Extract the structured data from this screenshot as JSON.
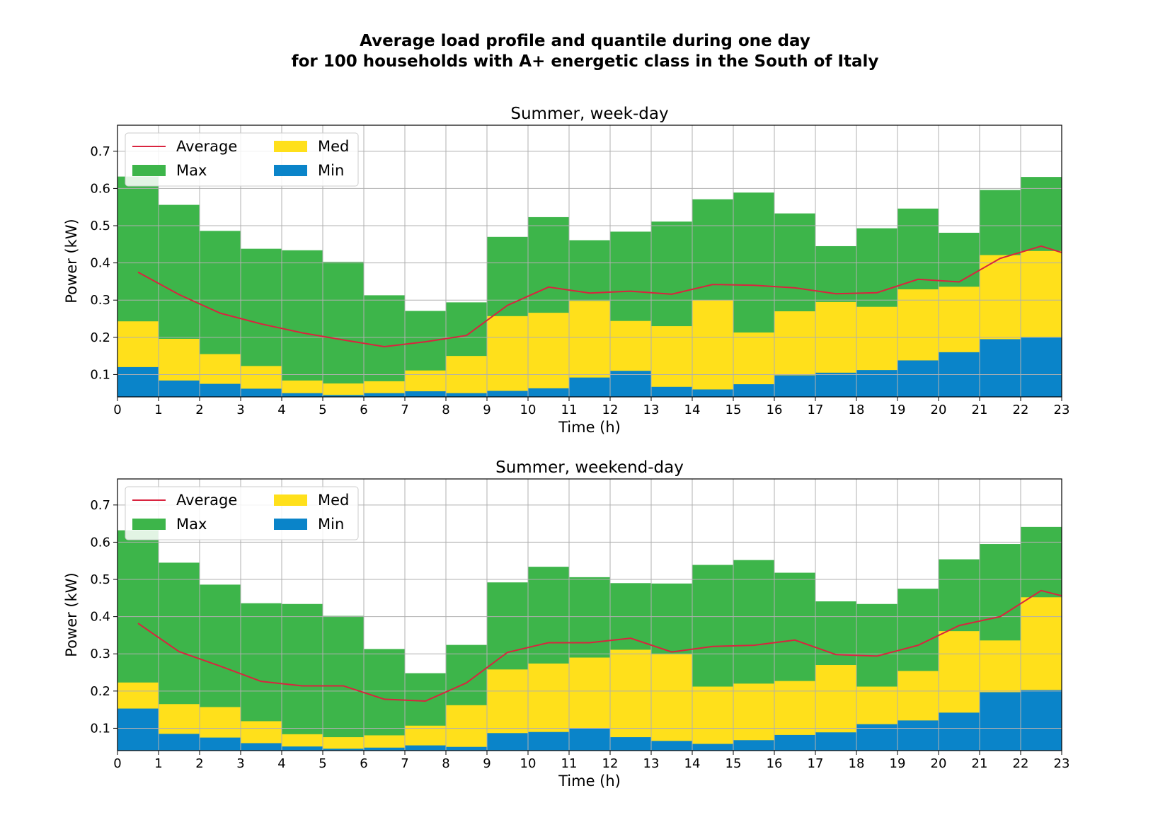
{
  "figure_title": "Average load profile and quantile during one day\nfor 100 households with A+ energetic class in the South of Italy",
  "colors": {
    "max": "#3db54a",
    "med": "#ffe01b",
    "min": "#0a84c9",
    "average": "#d9243f",
    "grid": "#b0b0b0"
  },
  "chart_data": [
    {
      "type": "bar",
      "title": "Summer, week-day",
      "xlabel": "Time (h)",
      "ylabel": "Power (kW)",
      "xlim": [
        0,
        23
      ],
      "ylim": [
        0.04,
        0.77
      ],
      "xticks": [
        "0",
        "1",
        "2",
        "3",
        "4",
        "5",
        "6",
        "7",
        "8",
        "9",
        "10",
        "11",
        "12",
        "13",
        "14",
        "15",
        "16",
        "17",
        "18",
        "19",
        "20",
        "21",
        "22",
        "23"
      ],
      "yticks": [
        "0.1",
        "0.2",
        "0.3",
        "0.4",
        "0.5",
        "0.6",
        "0.7"
      ],
      "grid": true,
      "legend_position": "top-left",
      "legend": [
        "Average",
        "Max",
        "Med",
        "Min"
      ],
      "series": [
        {
          "name": "Max",
          "values": [
            0.632,
            0.556,
            0.486,
            0.438,
            0.434,
            0.403,
            0.313,
            0.271,
            0.294,
            0.47,
            0.523,
            0.461,
            0.484,
            0.511,
            0.571,
            0.589,
            0.533,
            0.445,
            0.493,
            0.546,
            0.481,
            0.596,
            0.631
          ]
        },
        {
          "name": "Med",
          "values": [
            0.243,
            0.196,
            0.155,
            0.123,
            0.084,
            0.076,
            0.082,
            0.111,
            0.15,
            0.257,
            0.266,
            0.298,
            0.244,
            0.23,
            0.3,
            0.213,
            0.27,
            0.295,
            0.282,
            0.329,
            0.336,
            0.421,
            0.432
          ]
        },
        {
          "name": "Min",
          "values": [
            0.12,
            0.084,
            0.075,
            0.062,
            0.05,
            0.045,
            0.05,
            0.055,
            0.05,
            0.056,
            0.063,
            0.092,
            0.11,
            0.067,
            0.06,
            0.074,
            0.098,
            0.105,
            0.112,
            0.138,
            0.16,
            0.195,
            0.201
          ]
        },
        {
          "name": "Average",
          "x": [
            0.5,
            1.5,
            2.5,
            3.5,
            4.5,
            5.5,
            6.5,
            7.5,
            8.5,
            9.5,
            10.5,
            11.5,
            12.5,
            13.5,
            14.5,
            15.5,
            16.5,
            17.5,
            18.5,
            19.5,
            20.5,
            21.5,
            22.5,
            23
          ],
          "values": [
            0.375,
            0.315,
            0.265,
            0.236,
            0.212,
            0.193,
            0.175,
            0.188,
            0.205,
            0.286,
            0.335,
            0.319,
            0.324,
            0.316,
            0.342,
            0.34,
            0.333,
            0.317,
            0.32,
            0.356,
            0.349,
            0.412,
            0.445,
            0.428
          ]
        }
      ]
    },
    {
      "type": "bar",
      "title": "Summer, weekend-day",
      "xlabel": "Time (h)",
      "ylabel": "Power (kW)",
      "xlim": [
        0,
        23
      ],
      "ylim": [
        0.04,
        0.77
      ],
      "xticks": [
        "0",
        "1",
        "2",
        "3",
        "4",
        "5",
        "6",
        "7",
        "8",
        "9",
        "10",
        "11",
        "12",
        "13",
        "14",
        "15",
        "16",
        "17",
        "18",
        "19",
        "20",
        "21",
        "22",
        "23"
      ],
      "yticks": [
        "0.1",
        "0.2",
        "0.3",
        "0.4",
        "0.5",
        "0.6",
        "0.7"
      ],
      "grid": true,
      "legend_position": "top-left",
      "legend": [
        "Average",
        "Max",
        "Med",
        "Min"
      ],
      "series": [
        {
          "name": "Max",
          "values": [
            0.632,
            0.545,
            0.486,
            0.436,
            0.434,
            0.402,
            0.313,
            0.248,
            0.324,
            0.492,
            0.534,
            0.506,
            0.49,
            0.489,
            0.539,
            0.552,
            0.518,
            0.441,
            0.434,
            0.475,
            0.554,
            0.595,
            0.641
          ]
        },
        {
          "name": "Med",
          "values": [
            0.223,
            0.165,
            0.157,
            0.119,
            0.084,
            0.076,
            0.081,
            0.107,
            0.162,
            0.258,
            0.274,
            0.29,
            0.311,
            0.299,
            0.212,
            0.22,
            0.227,
            0.27,
            0.212,
            0.254,
            0.361,
            0.336,
            0.452
          ]
        },
        {
          "name": "Min",
          "values": [
            0.153,
            0.085,
            0.075,
            0.06,
            0.051,
            0.045,
            0.048,
            0.054,
            0.05,
            0.087,
            0.09,
            0.1,
            0.076,
            0.066,
            0.058,
            0.068,
            0.082,
            0.089,
            0.111,
            0.121,
            0.142,
            0.197,
            0.203
          ]
        },
        {
          "name": "Average",
          "x": [
            0.5,
            1.5,
            2.5,
            3.5,
            4.5,
            5.5,
            6.5,
            7.5,
            8.5,
            9.5,
            10.5,
            11.5,
            12.5,
            13.5,
            14.5,
            15.5,
            16.5,
            17.5,
            18.5,
            19.5,
            20.5,
            21.5,
            22.5,
            23
          ],
          "values": [
            0.382,
            0.306,
            0.267,
            0.226,
            0.214,
            0.214,
            0.178,
            0.173,
            0.222,
            0.304,
            0.33,
            0.33,
            0.342,
            0.305,
            0.32,
            0.323,
            0.337,
            0.298,
            0.294,
            0.323,
            0.376,
            0.4,
            0.47,
            0.456
          ]
        }
      ]
    }
  ]
}
